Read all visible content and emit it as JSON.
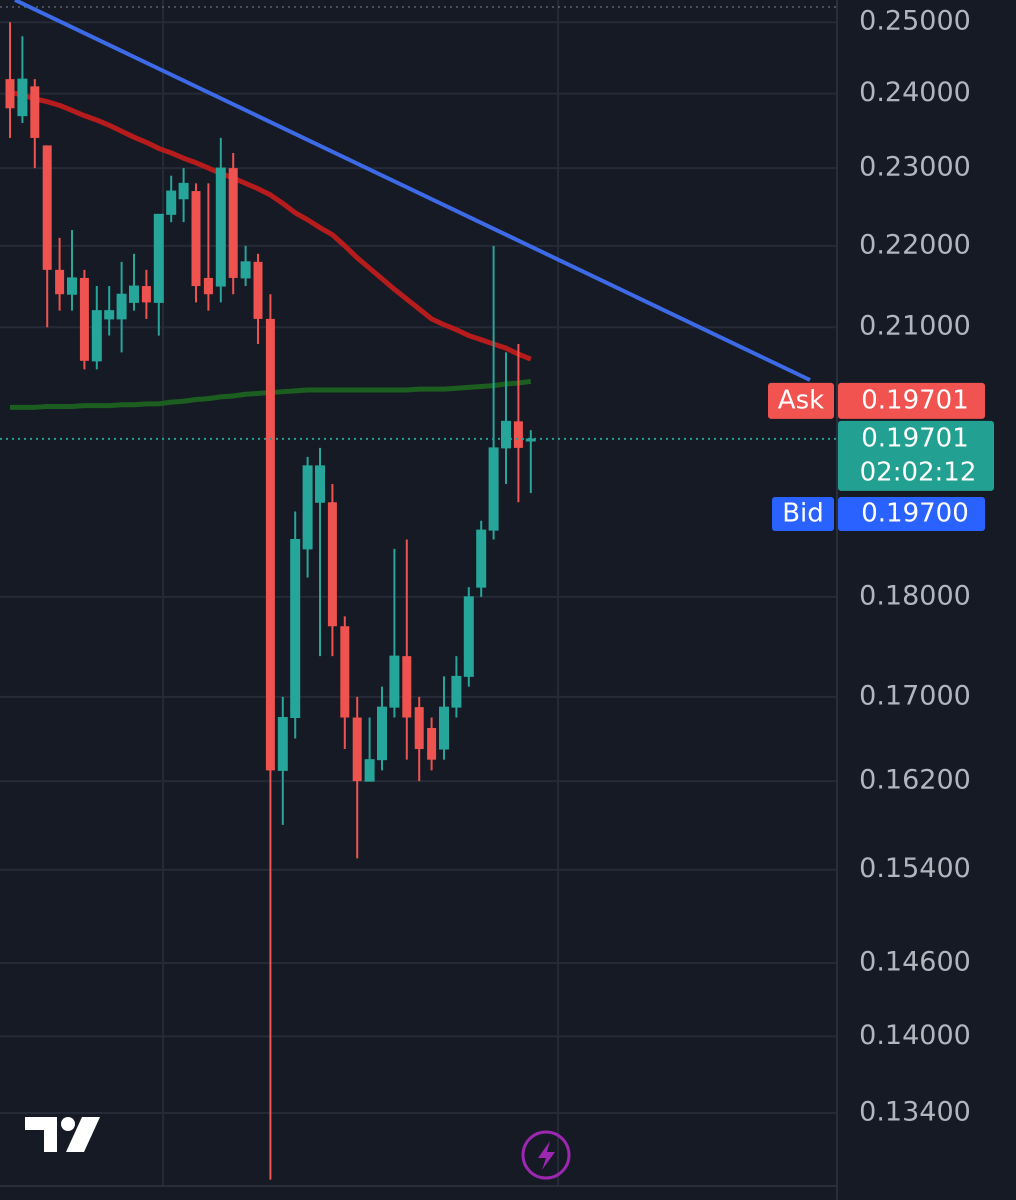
{
  "chart_data": {
    "type": "candlestick",
    "log_scale": true,
    "grid": true,
    "up_color": "#26a69a",
    "down_color": "#ef5350",
    "categories": [
      null,
      null,
      null,
      null,
      null,
      null,
      null,
      null,
      null,
      null,
      null,
      null,
      null,
      null,
      null,
      null,
      null,
      null,
      null,
      null,
      null,
      null,
      null,
      null,
      null,
      null,
      null,
      null,
      null,
      null,
      null,
      null,
      null,
      null,
      null,
      null,
      null,
      null,
      null,
      null,
      null,
      null,
      null
    ],
    "open": [
      0.242,
      0.237,
      0.241,
      0.233,
      0.217,
      0.214,
      0.216,
      0.206,
      0.211,
      0.211,
      0.213,
      0.215,
      0.213,
      0.224,
      0.226,
      0.227,
      0.216,
      0.215,
      0.23,
      0.216,
      0.218,
      0.211,
      0.163,
      0.168,
      0.185,
      0.19,
      0.19,
      0.177,
      0.168,
      0.162,
      0.164,
      0.169,
      0.174,
      0.169,
      0.167,
      0.165,
      0.169,
      0.172,
      0.181,
      0.187,
      0.196,
      0.199,
      0.197
    ],
    "high": [
      0.25,
      0.248,
      0.242,
      0.233,
      0.221,
      0.222,
      0.217,
      0.215,
      0.215,
      0.218,
      0.219,
      0.217,
      0.224,
      0.229,
      0.23,
      0.228,
      0.228,
      0.234,
      0.232,
      0.22,
      0.219,
      0.214,
      0.17,
      0.189,
      0.195,
      0.196,
      0.192,
      0.178,
      0.17,
      0.168,
      0.171,
      0.185,
      0.186,
      0.17,
      0.168,
      0.172,
      0.174,
      0.181,
      0.188,
      0.22,
      0.207,
      0.208,
      0.198
    ],
    "low": [
      0.234,
      0.236,
      0.23,
      0.21,
      0.212,
      0.212,
      0.205,
      0.205,
      0.209,
      0.207,
      0.212,
      0.211,
      0.209,
      0.223,
      0.223,
      0.213,
      0.212,
      0.213,
      0.214,
      0.215,
      0.208,
      0.129,
      0.158,
      0.166,
      0.182,
      0.174,
      0.174,
      0.165,
      0.155,
      0.162,
      0.163,
      0.168,
      0.164,
      0.162,
      0.163,
      0.164,
      0.168,
      0.171,
      0.18,
      0.186,
      0.192,
      0.19,
      0.191
    ],
    "close": [
      0.238,
      0.242,
      0.234,
      0.217,
      0.214,
      0.216,
      0.206,
      0.212,
      0.212,
      0.214,
      0.215,
      0.213,
      0.224,
      0.227,
      0.228,
      0.215,
      0.214,
      0.23,
      0.216,
      0.218,
      0.211,
      0.163,
      0.168,
      0.186,
      0.194,
      0.194,
      0.177,
      0.168,
      0.162,
      0.164,
      0.169,
      0.174,
      0.168,
      0.165,
      0.164,
      0.169,
      0.172,
      0.18,
      0.187,
      0.196,
      0.199,
      0.196,
      0.197
    ],
    "series": [
      {
        "color": "#b71c1c",
        "values": [
          0.2402,
          0.2398,
          0.2393,
          0.2389,
          0.2384,
          0.2377,
          0.237,
          0.2364,
          0.2357,
          0.2349,
          0.2341,
          0.2334,
          0.2326,
          0.232,
          0.2313,
          0.2307,
          0.23,
          0.2293,
          0.2287,
          0.228,
          0.2273,
          0.2265,
          0.2254,
          0.2242,
          0.2233,
          0.2223,
          0.2214,
          0.22,
          0.2185,
          0.2172,
          0.2159,
          0.2146,
          0.2134,
          0.2122,
          0.211,
          0.2103,
          0.2097,
          0.209,
          0.2085,
          0.208,
          0.2075,
          0.2068,
          0.2062
        ]
      },
      {
        "color": "#1b5e20",
        "values": [
          0.2006,
          0.2006,
          0.2006,
          0.2007,
          0.2007,
          0.2007,
          0.2008,
          0.2008,
          0.2008,
          0.2009,
          0.2009,
          0.201,
          0.201,
          0.2012,
          0.2013,
          0.2015,
          0.2016,
          0.2018,
          0.2019,
          0.2021,
          0.2022,
          0.2023,
          0.2024,
          0.2025,
          0.2026,
          0.2026,
          0.2026,
          0.2026,
          0.2026,
          0.2026,
          0.2026,
          0.2026,
          0.2026,
          0.2027,
          0.2027,
          0.2027,
          0.2028,
          0.2029,
          0.203,
          0.2031,
          0.2033,
          0.2034,
          0.2036
        ]
      }
    ],
    "ylim": [
      0.1286,
      0.2532
    ],
    "yticks": [
      {
        "value": 0.25,
        "label": "0.25000"
      },
      {
        "value": 0.24,
        "label": "0.24000"
      },
      {
        "value": 0.23,
        "label": "0.23000"
      },
      {
        "value": 0.22,
        "label": "0.22000"
      },
      {
        "value": 0.21,
        "label": "0.21000"
      },
      {
        "value": 0.18,
        "label": "0.18000"
      },
      {
        "value": 0.17,
        "label": "0.17000"
      },
      {
        "value": 0.162,
        "label": "0.16200"
      },
      {
        "value": 0.154,
        "label": "0.15400"
      },
      {
        "value": 0.146,
        "label": "0.14600"
      },
      {
        "value": 0.14,
        "label": "0.14000"
      },
      {
        "value": 0.134,
        "label": "0.13400"
      }
    ],
    "price_labels": {
      "ask": {
        "name": "Ask",
        "value": 0.19701,
        "label": "0.19701",
        "color": "#f05350"
      },
      "last": {
        "value": 0.19701,
        "label": "0.19701",
        "countdown": "02:02:12",
        "color": "#22a193"
      },
      "bid": {
        "name": "Bid",
        "value": 0.197,
        "label": "0.19700",
        "color": "#2962ff"
      }
    }
  }
}
